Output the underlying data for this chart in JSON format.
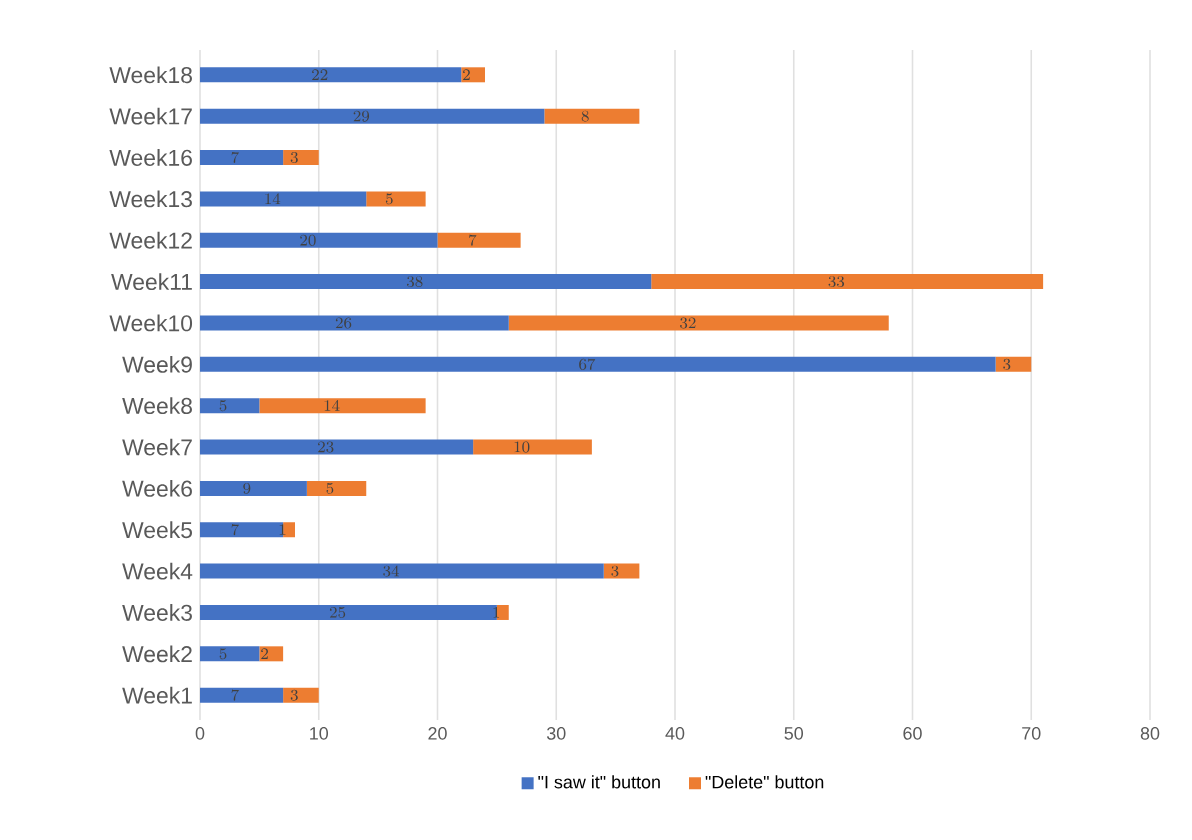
{
  "chart_data": {
    "type": "bar",
    "orientation": "horizontal",
    "stacked": true,
    "categories": [
      "Week18",
      "Week17",
      "Week16",
      "Week13",
      "Week12",
      "Week11",
      "Week10",
      "Week9",
      "Week8",
      "Week7",
      "Week6",
      "Week5",
      "Week4",
      "Week3",
      "Week2",
      "Week1"
    ],
    "series": [
      {
        "name": "\"I saw it\" button",
        "color": "#4472c4",
        "values": [
          22,
          29,
          7,
          14,
          20,
          38,
          26,
          67,
          5,
          23,
          9,
          7,
          34,
          25,
          5,
          7
        ]
      },
      {
        "name": "\"Delete\" button",
        "color": "#ed7d31",
        "values": [
          2,
          8,
          3,
          5,
          7,
          33,
          32,
          3,
          14,
          10,
          5,
          1,
          3,
          1,
          2,
          3
        ]
      }
    ],
    "xlim": [
      0,
      80
    ],
    "xticks": [
      0,
      10,
      20,
      30,
      40,
      50,
      60,
      70,
      80
    ],
    "grid": "x",
    "legend": "bottom",
    "data_labels": true
  }
}
